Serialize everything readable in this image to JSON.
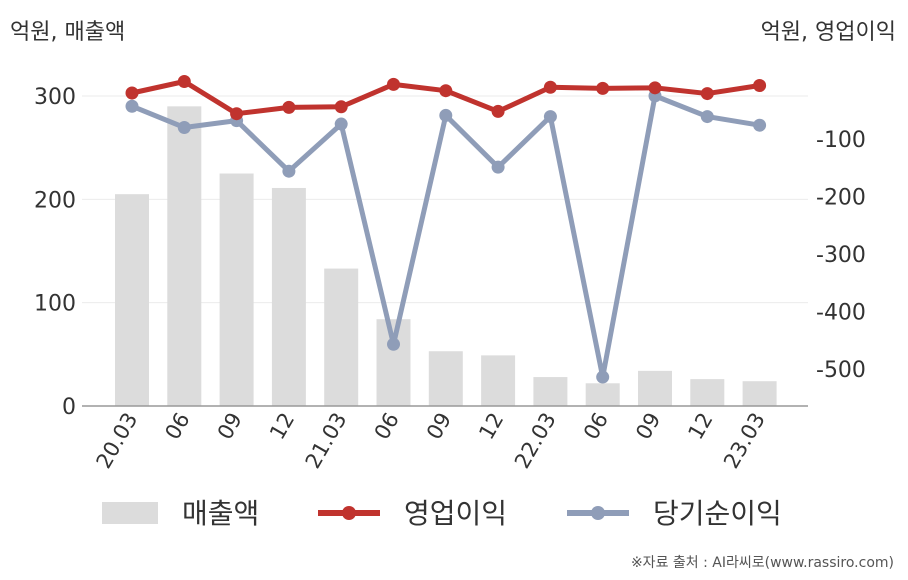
{
  "chart_data": {
    "type": "bar+line",
    "categories": [
      "20.03",
      "06",
      "09",
      "12",
      "21.03",
      "06",
      "09",
      "12",
      "22.03",
      "06",
      "09",
      "12",
      "23.03"
    ],
    "left_axis": {
      "unit_label": "억원, 매출액",
      "ylim": [
        0,
        300
      ],
      "ticks": [
        0,
        100,
        200,
        300
      ]
    },
    "right_axis": {
      "unit_label": "억원, 영업이익",
      "ylim": [
        -600,
        20
      ],
      "ticks": [
        -100,
        -200,
        -300,
        -400,
        -500
      ]
    },
    "series": [
      {
        "name": "매출액",
        "kind": "bar",
        "axis": "left",
        "color": "#dcdcdc",
        "values": [
          205,
          290,
          225,
          211,
          133,
          84,
          53,
          49,
          28,
          22,
          34,
          26,
          24
        ]
      },
      {
        "name": "영업이익",
        "kind": "line",
        "axis": "right",
        "color": "#c0332e",
        "values": [
          -20,
          0,
          -56,
          -45,
          -44,
          -5,
          -16,
          -52,
          -10,
          -12,
          -11,
          -21,
          -7
        ]
      },
      {
        "name": "당기순이익",
        "kind": "line",
        "axis": "right",
        "color": "#8f9db8",
        "values": [
          -43,
          -80,
          -68,
          -156,
          -74,
          -457,
          -59,
          -149,
          -61,
          -514,
          -25,
          -61,
          -76
        ]
      }
    ],
    "grid": true,
    "legend_position": "bottom"
  },
  "source": "※자료 출처 : AI라씨로(www.rassiro.com)"
}
